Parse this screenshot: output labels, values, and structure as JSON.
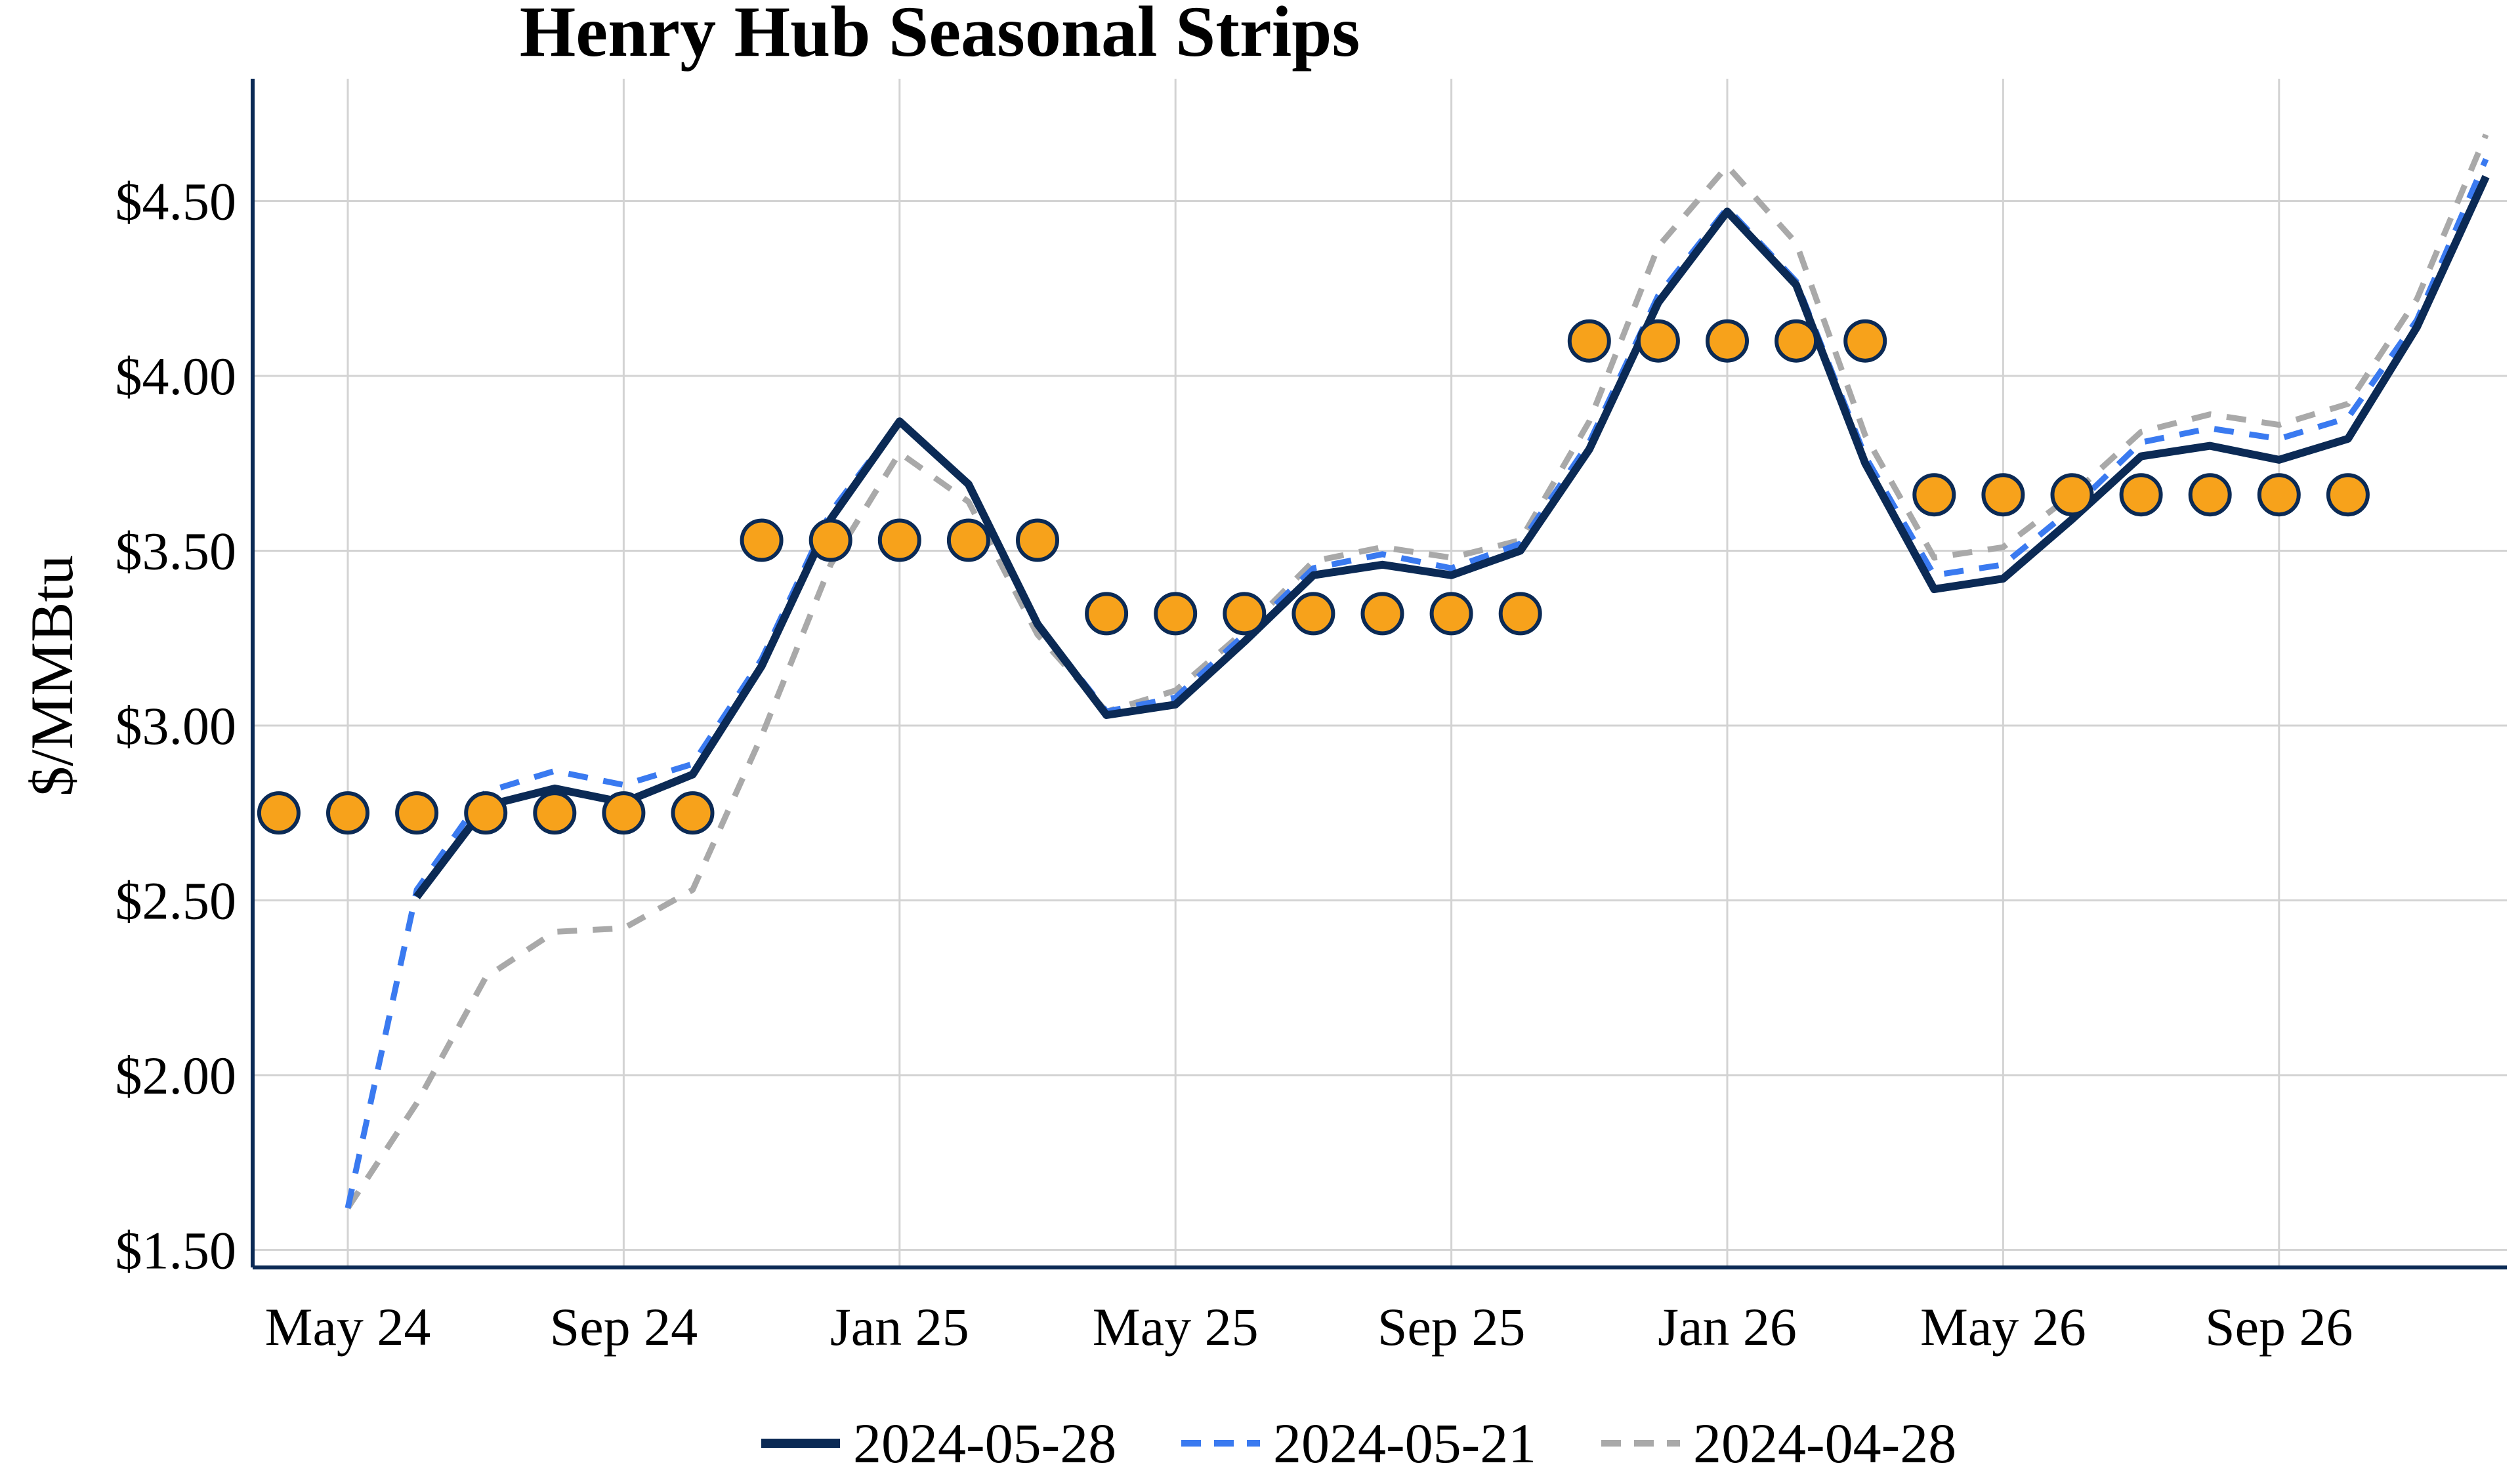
{
  "chart_data": {
    "type": "line",
    "title": "Henry Hub Seasonal Strips",
    "xlabel": "",
    "ylabel": "$/MMBtu",
    "x_range": [
      "2024-03",
      "2026-12"
    ],
    "ylim": [
      1.45,
      4.85
    ],
    "y_ticks": [
      1.5,
      2.0,
      2.5,
      3.0,
      3.5,
      4.0,
      4.5
    ],
    "y_tick_labels": [
      "$1.50",
      "$2.00",
      "$2.50",
      "$3.00",
      "$3.50",
      "$4.00",
      "$4.50"
    ],
    "x_ticks": [
      "2024-05",
      "2024-09",
      "2025-01",
      "2025-05",
      "2025-09",
      "2026-01",
      "2026-05",
      "2026-09"
    ],
    "x_tick_labels": [
      "May 24",
      "Sep 24",
      "Jan 25",
      "May 25",
      "Sep 25",
      "Jan 26",
      "May 26",
      "Sep 26"
    ],
    "grid": true,
    "legend_position": "bottom",
    "colors": {
      "series_1": "#0b2a55",
      "series_2": "#3a7af0",
      "series_3": "#a9a9a9",
      "strip_fill": "#f7a21b",
      "strip_edge": "#0b2a55",
      "axis": "#0b2a55",
      "grid": "#d3d3d3"
    },
    "series": [
      {
        "name": "2024-05-28",
        "style": "solid",
        "start": "2024-06",
        "values": [
          2.51,
          2.77,
          2.82,
          2.78,
          2.86,
          3.17,
          3.59,
          3.87,
          3.69,
          3.29,
          3.03,
          3.06,
          3.24,
          3.43,
          3.46,
          3.43,
          3.5,
          3.79,
          4.21,
          4.47,
          4.26,
          3.75,
          3.39,
          3.42,
          3.59,
          3.77,
          3.8,
          3.76,
          3.82,
          4.14,
          4.57
        ]
      },
      {
        "name": "2024-05-21",
        "style": "dashed",
        "start": "2024-05",
        "values": [
          1.62,
          2.53,
          2.81,
          2.87,
          2.83,
          2.89,
          3.19,
          3.61,
          3.87,
          3.69,
          3.29,
          3.04,
          3.08,
          3.26,
          3.45,
          3.49,
          3.45,
          3.52,
          3.81,
          4.23,
          4.48,
          4.27,
          3.77,
          3.43,
          3.46,
          3.62,
          3.81,
          3.85,
          3.82,
          3.88,
          4.16,
          4.62
        ]
      },
      {
        "name": "2024-04-28",
        "style": "dashed",
        "start": "2024-05",
        "values": [
          1.62,
          1.92,
          2.28,
          2.41,
          2.42,
          2.53,
          2.97,
          3.46,
          3.78,
          3.64,
          3.26,
          3.04,
          3.1,
          3.27,
          3.47,
          3.51,
          3.48,
          3.53,
          3.87,
          4.37,
          4.6,
          4.38,
          3.83,
          3.48,
          3.51,
          3.66,
          3.84,
          3.89,
          3.86,
          3.92,
          4.22,
          4.69
        ]
      }
    ],
    "strips": [
      {
        "months": [
          "2024-04",
          "2024-05",
          "2024-06",
          "2024-07",
          "2024-08",
          "2024-09",
          "2024-10"
        ],
        "value": 2.75
      },
      {
        "months": [
          "2024-11",
          "2024-12",
          "2025-01",
          "2025-02",
          "2025-03"
        ],
        "value": 3.53
      },
      {
        "months": [
          "2025-04",
          "2025-05",
          "2025-06",
          "2025-07",
          "2025-08",
          "2025-09",
          "2025-10"
        ],
        "value": 3.32
      },
      {
        "months": [
          "2025-11",
          "2025-12",
          "2026-01",
          "2026-02",
          "2026-03"
        ],
        "value": 4.1
      },
      {
        "months": [
          "2026-04",
          "2026-05",
          "2026-06",
          "2026-07",
          "2026-08",
          "2026-09",
          "2026-10"
        ],
        "value": 3.66
      }
    ]
  }
}
